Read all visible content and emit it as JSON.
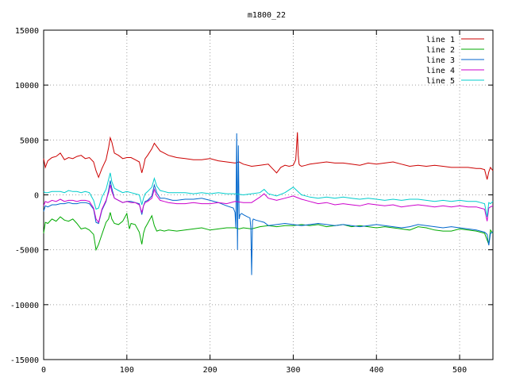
{
  "chart_data": {
    "type": "line",
    "title": "m1800_22",
    "xlabel": "",
    "ylabel": "",
    "xlim": [
      0,
      540
    ],
    "ylim": [
      -15000,
      15000
    ],
    "xticks": [
      0,
      100,
      200,
      300,
      400,
      500
    ],
    "xtick_labels": [
      "0",
      "100",
      "200",
      "300",
      "400",
      "500"
    ],
    "yticks": [
      -15000,
      -10000,
      -5000,
      0,
      5000,
      10000,
      15000
    ],
    "ytick_labels": [
      "-15000",
      "-10000",
      "-5000",
      "0",
      "5000",
      "10000",
      "15000"
    ],
    "grid": true,
    "legend_position": "top-right",
    "series": [
      {
        "name": "line 1",
        "color": "#cc0000",
        "x": [
          0,
          2,
          5,
          10,
          15,
          20,
          25,
          30,
          35,
          40,
          45,
          50,
          55,
          60,
          63,
          66,
          70,
          75,
          78,
          80,
          82,
          85,
          90,
          95,
          100,
          105,
          110,
          115,
          118,
          120,
          122,
          125,
          130,
          133,
          136,
          140,
          145,
          150,
          155,
          160,
          170,
          180,
          190,
          200,
          210,
          220,
          230,
          235,
          240,
          250,
          260,
          270,
          275,
          280,
          285,
          290,
          295,
          300,
          303,
          305,
          306,
          307,
          308,
          310,
          315,
          320,
          330,
          340,
          350,
          360,
          370,
          380,
          390,
          400,
          410,
          420,
          430,
          440,
          450,
          460,
          470,
          480,
          490,
          500,
          510,
          520,
          525,
          530,
          533,
          535,
          537,
          540
        ],
        "y": [
          3300,
          2500,
          3100,
          3400,
          3500,
          3800,
          3200,
          3400,
          3300,
          3500,
          3600,
          3300,
          3400,
          3000,
          2200,
          1600,
          2400,
          3200,
          4300,
          5200,
          4800,
          3800,
          3600,
          3300,
          3400,
          3400,
          3200,
          3000,
          2000,
          2600,
          3300,
          3600,
          4200,
          4700,
          4400,
          4000,
          3800,
          3600,
          3500,
          3400,
          3300,
          3200,
          3200,
          3300,
          3100,
          3000,
          2900,
          3000,
          2800,
          2600,
          2700,
          2800,
          2400,
          2000,
          2500,
          2700,
          2600,
          2700,
          3200,
          5700,
          3600,
          2800,
          2700,
          2600,
          2700,
          2800,
          2900,
          3000,
          2900,
          2900,
          2800,
          2700,
          2900,
          2800,
          2900,
          3000,
          2800,
          2600,
          2700,
          2600,
          2700,
          2600,
          2500,
          2500,
          2500,
          2400,
          2400,
          2300,
          1400,
          2100,
          2500,
          2200
        ]
      },
      {
        "name": "line 2",
        "color": "#00aa00",
        "x": [
          0,
          2,
          5,
          10,
          15,
          20,
          25,
          30,
          35,
          40,
          45,
          50,
          55,
          60,
          63,
          66,
          70,
          75,
          78,
          80,
          82,
          85,
          90,
          95,
          100,
          103,
          105,
          110,
          115,
          118,
          120,
          122,
          125,
          130,
          133,
          136,
          140,
          145,
          150,
          160,
          170,
          180,
          190,
          200,
          210,
          220,
          230,
          235,
          240,
          250,
          260,
          270,
          280,
          290,
          300,
          310,
          320,
          330,
          340,
          350,
          360,
          370,
          380,
          390,
          400,
          410,
          420,
          430,
          440,
          450,
          460,
          470,
          480,
          490,
          500,
          510,
          520,
          525,
          530,
          535,
          537,
          540
        ],
        "y": [
          -3500,
          -2500,
          -2600,
          -2200,
          -2400,
          -2000,
          -2300,
          -2400,
          -2200,
          -2600,
          -3100,
          -3000,
          -3200,
          -3600,
          -5000,
          -4500,
          -3600,
          -2500,
          -2200,
          -1600,
          -2200,
          -2600,
          -2700,
          -2400,
          -1700,
          -3100,
          -2600,
          -2700,
          -3400,
          -4500,
          -3500,
          -3000,
          -2600,
          -1900,
          -2800,
          -3300,
          -3200,
          -3300,
          -3200,
          -3300,
          -3200,
          -3100,
          -3000,
          -3200,
          -3100,
          -3000,
          -3000,
          -3100,
          -3000,
          -3100,
          -2900,
          -2800,
          -2900,
          -2800,
          -2800,
          -2700,
          -2800,
          -2700,
          -2900,
          -2800,
          -2700,
          -2900,
          -2800,
          -2900,
          -3000,
          -2900,
          -3000,
          -3100,
          -3200,
          -2900,
          -3000,
          -3200,
          -3300,
          -3300,
          -3100,
          -3200,
          -3300,
          -3400,
          -3500,
          -4500,
          -3200,
          -3500
        ]
      },
      {
        "name": "line 3",
        "color": "#0066cc",
        "x": [
          0,
          2,
          5,
          10,
          15,
          20,
          25,
          30,
          35,
          40,
          45,
          50,
          55,
          60,
          63,
          66,
          70,
          75,
          78,
          80,
          82,
          85,
          90,
          95,
          100,
          105,
          110,
          115,
          118,
          120,
          122,
          125,
          130,
          133,
          136,
          140,
          145,
          150,
          155,
          160,
          170,
          180,
          190,
          200,
          210,
          220,
          228,
          230,
          231,
          232,
          233,
          234,
          235,
          236,
          238,
          240,
          245,
          248,
          249,
          250,
          251,
          252,
          255,
          260,
          265,
          270,
          280,
          290,
          300,
          310,
          320,
          330,
          340,
          350,
          360,
          370,
          380,
          390,
          400,
          410,
          420,
          430,
          440,
          450,
          460,
          470,
          480,
          490,
          500,
          510,
          520,
          525,
          530,
          533,
          535,
          537,
          540
        ],
        "y": [
          -1500,
          -1000,
          -1100,
          -900,
          -900,
          -800,
          -800,
          -700,
          -800,
          -800,
          -700,
          -700,
          -800,
          -1300,
          -2500,
          -2600,
          -1400,
          -600,
          400,
          1300,
          600,
          -300,
          -500,
          -700,
          -600,
          -600,
          -700,
          -800,
          -1800,
          -1000,
          -600,
          -500,
          -100,
          900,
          200,
          -300,
          -300,
          -400,
          -500,
          -500,
          -400,
          -400,
          -300,
          -500,
          -700,
          -1000,
          -1200,
          -1600,
          -3000,
          5600,
          -5000,
          4500,
          -2200,
          -1800,
          -1700,
          -1800,
          -2000,
          -2100,
          -3000,
          -7300,
          -2400,
          -2200,
          -2300,
          -2400,
          -2500,
          -2800,
          -2700,
          -2600,
          -2700,
          -2800,
          -2700,
          -2600,
          -2700,
          -2800,
          -2700,
          -2800,
          -2900,
          -2800,
          -2700,
          -2800,
          -2900,
          -3000,
          -2900,
          -2700,
          -2800,
          -2900,
          -3000,
          -2900,
          -3000,
          -3100,
          -3200,
          -3300,
          -3400,
          -3600,
          -4600,
          -3500,
          -3400
        ]
      },
      {
        "name": "line 4",
        "color": "#cc00cc",
        "x": [
          0,
          2,
          5,
          10,
          15,
          20,
          25,
          30,
          35,
          40,
          45,
          50,
          55,
          60,
          63,
          66,
          70,
          75,
          78,
          80,
          82,
          85,
          90,
          95,
          100,
          105,
          110,
          115,
          118,
          120,
          122,
          125,
          130,
          133,
          136,
          140,
          145,
          150,
          160,
          170,
          180,
          190,
          200,
          210,
          220,
          230,
          240,
          250,
          260,
          265,
          270,
          280,
          290,
          300,
          310,
          320,
          330,
          340,
          350,
          360,
          370,
          380,
          390,
          400,
          410,
          420,
          430,
          440,
          450,
          460,
          470,
          480,
          490,
          500,
          510,
          520,
          525,
          530,
          533,
          535,
          537,
          540
        ],
        "y": [
          -1000,
          -600,
          -700,
          -500,
          -600,
          -400,
          -600,
          -500,
          -500,
          -600,
          -500,
          -500,
          -600,
          -1200,
          -2200,
          -2500,
          -1300,
          -500,
          200,
          900,
          300,
          -300,
          -500,
          -700,
          -600,
          -700,
          -700,
          -900,
          -1600,
          -1000,
          -700,
          -600,
          -300,
          500,
          -100,
          -500,
          -600,
          -700,
          -800,
          -800,
          -700,
          -800,
          -800,
          -700,
          -800,
          -600,
          -700,
          -700,
          -200,
          100,
          -300,
          -500,
          -300,
          -100,
          -400,
          -600,
          -800,
          -700,
          -900,
          -800,
          -900,
          -1000,
          -800,
          -900,
          -1000,
          -900,
          -1100,
          -1000,
          -900,
          -1000,
          -1100,
          -1000,
          -1100,
          -1000,
          -1100,
          -1100,
          -1200,
          -1300,
          -2400,
          -1200,
          -1100,
          -1000
        ]
      },
      {
        "name": "line 5",
        "color": "#00cccc",
        "x": [
          0,
          2,
          5,
          10,
          15,
          20,
          25,
          30,
          35,
          40,
          45,
          50,
          55,
          60,
          63,
          66,
          70,
          75,
          78,
          80,
          82,
          85,
          90,
          95,
          100,
          105,
          110,
          115,
          118,
          120,
          122,
          125,
          130,
          133,
          136,
          140,
          145,
          150,
          160,
          170,
          180,
          190,
          200,
          210,
          220,
          230,
          240,
          250,
          260,
          265,
          270,
          280,
          290,
          300,
          310,
          320,
          330,
          340,
          350,
          360,
          370,
          380,
          390,
          400,
          410,
          420,
          430,
          440,
          450,
          460,
          470,
          480,
          490,
          500,
          510,
          520,
          525,
          530,
          533,
          535,
          537,
          540
        ],
        "y": [
          300,
          200,
          200,
          300,
          300,
          300,
          200,
          400,
          300,
          300,
          200,
          300,
          200,
          -500,
          -1300,
          -1200,
          -200,
          500,
          1400,
          2000,
          1200,
          600,
          400,
          200,
          300,
          200,
          100,
          0,
          -900,
          -300,
          100,
          300,
          700,
          1500,
          800,
          400,
          300,
          200,
          200,
          200,
          100,
          200,
          100,
          200,
          100,
          100,
          0,
          100,
          200,
          500,
          100,
          -100,
          200,
          700,
          0,
          -200,
          -300,
          -200,
          -300,
          -200,
          -300,
          -400,
          -300,
          -400,
          -500,
          -400,
          -500,
          -400,
          -400,
          -500,
          -600,
          -500,
          -600,
          -500,
          -600,
          -600,
          -700,
          -800,
          -2000,
          -700,
          -800,
          -600
        ]
      }
    ]
  }
}
